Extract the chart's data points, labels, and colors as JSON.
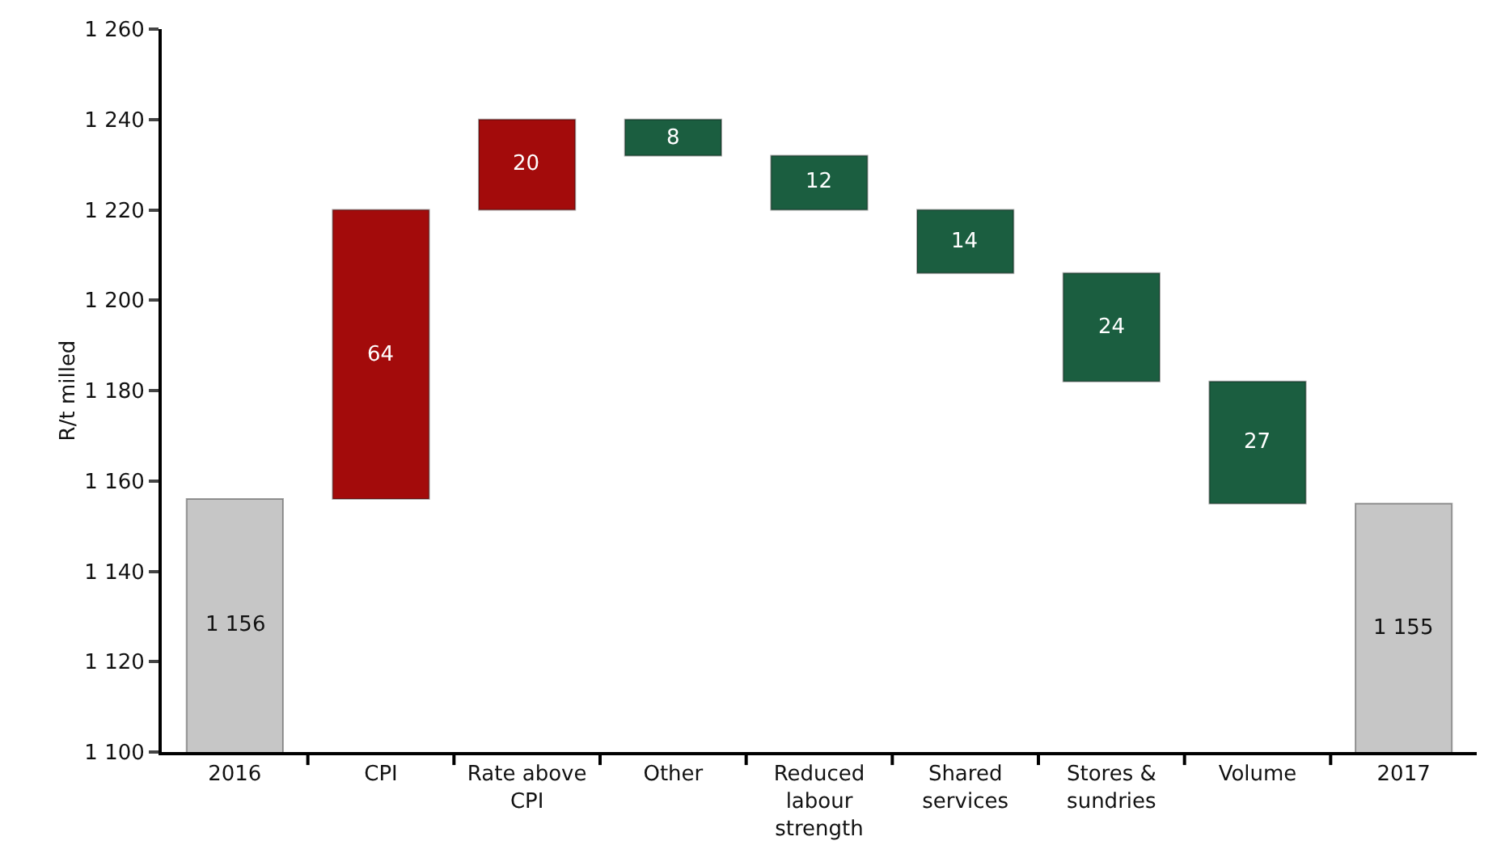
{
  "chart_data": {
    "type": "bar",
    "ylabel": "R/t milled",
    "categories": [
      "2016",
      "CPI",
      "Rate above CPI",
      "Other",
      "Reduced labour strength",
      "Shared services",
      "Stores & sundries",
      "Volume",
      "2017"
    ],
    "values": [
      1156,
      64,
      20,
      8,
      12,
      14,
      24,
      27,
      1155
    ],
    "base": [
      0,
      1156,
      1220,
      1232,
      1220,
      1206,
      1182,
      1155,
      0
    ],
    "colors": [
      "#c6c6c6",
      "#a30b0b",
      "#a30b0b",
      "#1b5e40",
      "#1b5e40",
      "#1b5e40",
      "#1b5e40",
      "#1b5e40",
      "#c6c6c6"
    ],
    "value_labels": [
      "1 156",
      "64",
      "20",
      "8",
      "12",
      "14",
      "24",
      "27",
      "1 155"
    ],
    "ylim": [
      1100,
      1260
    ],
    "yticks": [
      {
        "value": 1100,
        "label": "1 100"
      },
      {
        "value": 1120,
        "label": "1 120"
      },
      {
        "value": 1140,
        "label": "1 140"
      },
      {
        "value": 1160,
        "label": "1 160"
      },
      {
        "value": 1180,
        "label": "1 180"
      },
      {
        "value": 1200,
        "label": "1 200"
      },
      {
        "value": 1220,
        "label": "1 220"
      },
      {
        "value": 1240,
        "label": "1 240"
      },
      {
        "value": 1260,
        "label": "1 260"
      }
    ],
    "grid": false
  }
}
